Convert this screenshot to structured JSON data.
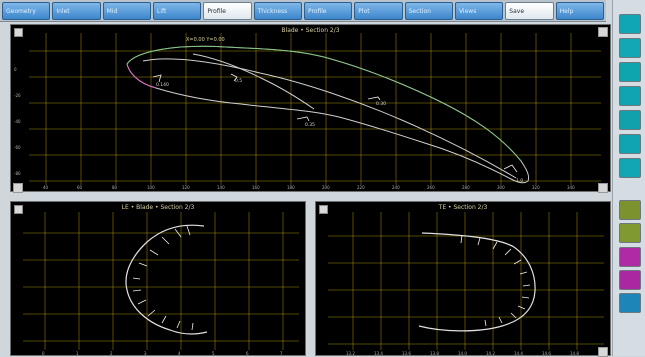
{
  "tabs": [
    {
      "label": "Geometry"
    },
    {
      "label": "Inlet"
    },
    {
      "label": "Mid"
    },
    {
      "label": "Lift"
    },
    {
      "label": "Profile"
    },
    {
      "label": "Thickness"
    },
    {
      "label": "Profile"
    },
    {
      "label": "Plot"
    },
    {
      "label": "Section"
    },
    {
      "label": "Views"
    },
    {
      "label": "Save"
    },
    {
      "label": "Help"
    }
  ],
  "main_panel": {
    "title": "Blade • Section 2/3",
    "subtitle": "X=0.00 Y=0.00"
  },
  "bottom_left_panel": {
    "title": "LE • Blade • Section 2/3"
  },
  "bottom_right_panel": {
    "title": "TE • Section 2/3"
  },
  "tools": [
    {
      "name": "tool-1",
      "color": "#0fa6b5"
    },
    {
      "name": "tool-2",
      "color": "#12a7b3"
    },
    {
      "name": "tool-3",
      "color": "#0fa5af"
    },
    {
      "name": "tool-4",
      "color": "#10a3b0"
    },
    {
      "name": "tool-5",
      "color": "#11a1ad"
    },
    {
      "name": "tool-6",
      "color": "#10a3b0"
    },
    {
      "name": "tool-7",
      "color": "#12a5b2"
    },
    {
      "name": "tool-8",
      "color": "#7b922f"
    },
    {
      "name": "tool-9",
      "color": "#809a31"
    },
    {
      "name": "tool-10",
      "color": "#b02aa6"
    },
    {
      "name": "tool-11",
      "color": "#ab26a1"
    },
    {
      "name": "tool-12",
      "color": "#1e85b8"
    }
  ]
}
